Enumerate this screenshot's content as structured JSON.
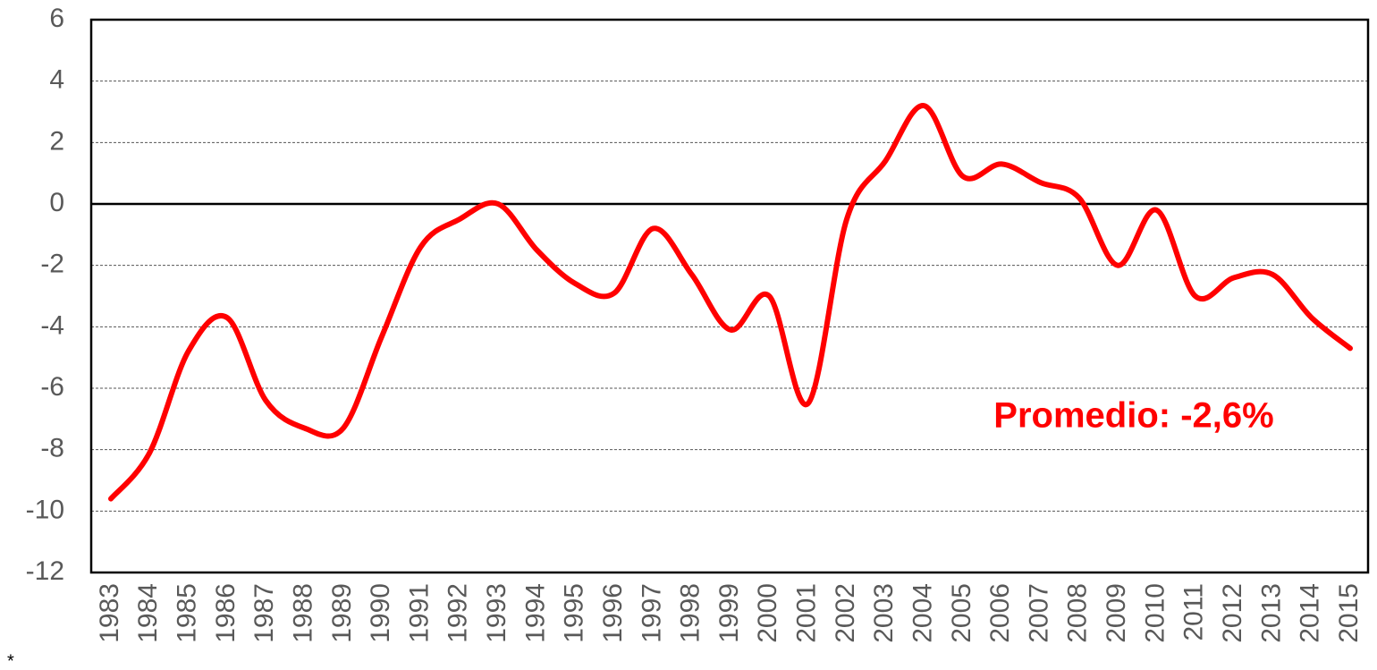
{
  "chart_data": {
    "type": "line",
    "categories": [
      "1983",
      "1984",
      "1985",
      "1986",
      "1987",
      "1988",
      "1989",
      "1990",
      "1991",
      "1992",
      "1993",
      "1994",
      "1995",
      "1996",
      "1997",
      "1998",
      "1999",
      "2000",
      "2001",
      "2002",
      "2003",
      "2004",
      "2005",
      "2006",
      "2007",
      "2008",
      "2009",
      "2010",
      "2011",
      "2012",
      "2013",
      "2014",
      "2015"
    ],
    "series": [
      {
        "color": "#ff0000",
        "values": [
          -9.6,
          -8.1,
          -4.8,
          -3.7,
          -6.4,
          -7.3,
          -7.3,
          -4.3,
          -1.4,
          -0.5,
          0.0,
          -1.5,
          -2.6,
          -2.9,
          -0.8,
          -2.3,
          -4.1,
          -3.0,
          -6.5,
          -0.5,
          1.4,
          3.2,
          0.9,
          1.3,
          0.7,
          0.2,
          -2.0,
          -0.2,
          -3.0,
          -2.4,
          -2.3,
          -3.7,
          -4.7
        ]
      }
    ],
    "ylim": [
      -12,
      6
    ],
    "yticks": [
      -12,
      -10,
      -8,
      -6,
      -4,
      -2,
      0,
      2,
      4,
      6
    ],
    "grid": true,
    "annotation": "Promedio: -2,6%",
    "footnote": "*"
  }
}
